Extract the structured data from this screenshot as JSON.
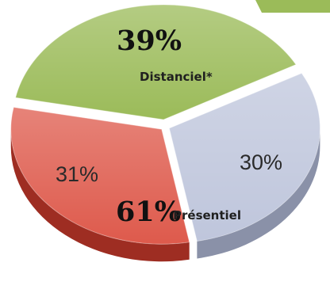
{
  "chart_data": {
    "type": "pie",
    "categories": [
      "Distanciel*",
      "Présentiel"
    ],
    "slices": [
      {
        "label": "",
        "value": 39,
        "display": "39%",
        "color": "#9bbb59",
        "dark": "#5f7a2f"
      },
      {
        "label": "",
        "value": 30,
        "display": "30%",
        "color": "#bfc6dc",
        "dark": "#8a91a8"
      },
      {
        "label": "",
        "value": 31,
        "display": "31%",
        "color": "#de5a4c",
        "dark": "#9e2d22"
      }
    ],
    "groups": [
      {
        "label": "Distanciel*",
        "display": "39%",
        "slices": [
          0
        ]
      },
      {
        "label": "Présentiel",
        "display": "61%",
        "slices": [
          1,
          2
        ]
      }
    ],
    "style": "3d-exploded"
  }
}
